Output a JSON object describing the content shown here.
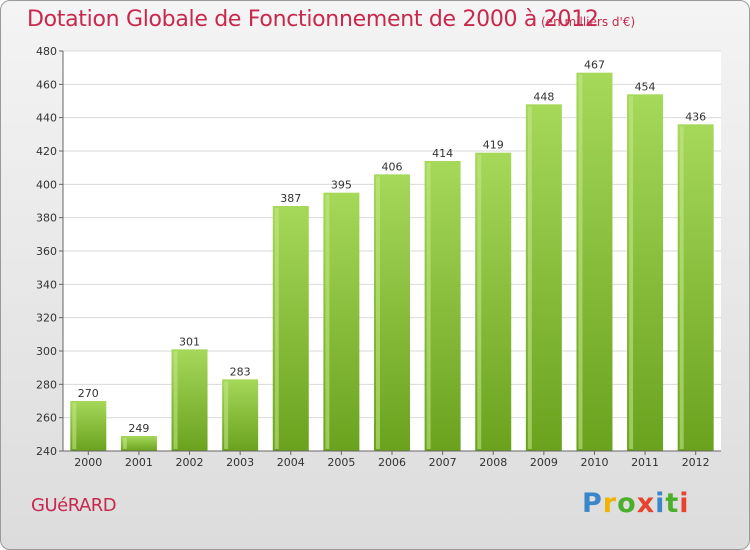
{
  "chart_data": {
    "type": "bar",
    "title": "Dotation Globale de Fonctionnement de 2000 à 2012",
    "subtitle": "(en milliers d'€)",
    "categories": [
      "2000",
      "2001",
      "2002",
      "2003",
      "2004",
      "2005",
      "2006",
      "2007",
      "2008",
      "2009",
      "2010",
      "2011",
      "2012"
    ],
    "values": [
      270,
      249,
      301,
      283,
      387,
      395,
      406,
      414,
      419,
      448,
      467,
      454,
      436
    ],
    "ylim": [
      240,
      480
    ],
    "yticks": [
      240,
      260,
      280,
      300,
      320,
      340,
      360,
      380,
      400,
      420,
      440,
      460,
      480
    ],
    "grid": "horizontal",
    "bar_color": "#7ab62c",
    "bar_color_light": "#a6d85a"
  },
  "place_name": "GUéRARD",
  "logo": {
    "letters": [
      "P",
      "r",
      "o",
      "x",
      "i",
      "t",
      "i"
    ],
    "colors": [
      "#3a86c8",
      "#f0b400",
      "#4caf2c",
      "#e8432e",
      "#3a86c8",
      "#4caf2c",
      "#e8432e"
    ]
  },
  "accent_color": "#c8284d"
}
